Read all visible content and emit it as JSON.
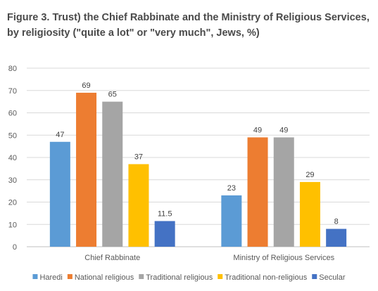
{
  "chart_data": {
    "type": "bar",
    "title": "Figure 3. Trust) the Chief Rabbinate and the Ministry of Religious Services, by religiosity (\"quite a lot\" or \"very much\", Jews, %)",
    "categories": [
      "Chief Rabbinate",
      "Ministry of Religious Services"
    ],
    "series": [
      {
        "name": "Haredi",
        "values": [
          47,
          23
        ],
        "labels": [
          "47",
          "23"
        ],
        "color": "#5b9bd5"
      },
      {
        "name": "National religious",
        "values": [
          69,
          49
        ],
        "labels": [
          "69",
          "49"
        ],
        "color": "#ed7d31"
      },
      {
        "name": "Traditional religious",
        "values": [
          65,
          49
        ],
        "labels": [
          "65",
          "49"
        ],
        "color": "#a5a5a5"
      },
      {
        "name": "Traditional non-religious",
        "values": [
          37,
          29
        ],
        "labels": [
          "37",
          "29"
        ],
        "color": "#ffc000"
      },
      {
        "name": "Secular",
        "values": [
          11.5,
          8
        ],
        "labels": [
          "11.5",
          "8"
        ],
        "color": "#4472c4"
      }
    ],
    "ylim": [
      0,
      80
    ],
    "yticks": [
      "0",
      "10",
      "20",
      "30",
      "40",
      "50",
      "60",
      "70",
      "80"
    ],
    "grid": true,
    "legend": "bottom",
    "xlabel": "",
    "ylabel": ""
  }
}
